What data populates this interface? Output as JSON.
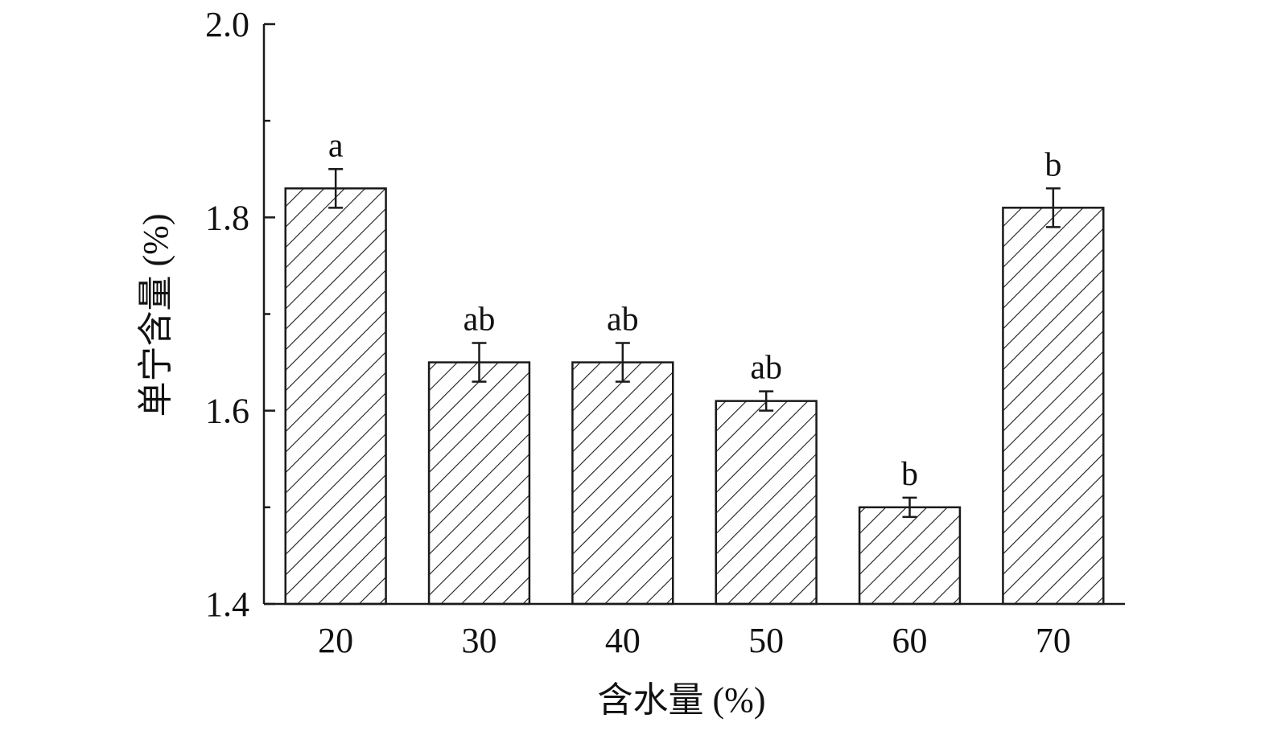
{
  "chart_data": {
    "type": "bar",
    "categories": [
      "20",
      "30",
      "40",
      "50",
      "60",
      "70"
    ],
    "values": [
      1.83,
      1.65,
      1.65,
      1.61,
      1.5,
      1.81
    ],
    "errors": [
      0.02,
      0.02,
      0.02,
      0.01,
      0.01,
      0.02
    ],
    "letters": [
      "a",
      "ab",
      "ab",
      "ab",
      "b",
      "b"
    ],
    "ylim": [
      1.4,
      2.0
    ],
    "yticks": [
      1.4,
      1.6,
      1.8,
      {
        "value": 2.0,
        "label": "2.0"
      }
    ],
    "minor_yticks": [
      1.5,
      1.7,
      1.9
    ],
    "xlabel": "含水量 (%)",
    "ylabel": "单宁含量 (%)",
    "color": "#1a1a1a",
    "hatch": "diagonal"
  }
}
